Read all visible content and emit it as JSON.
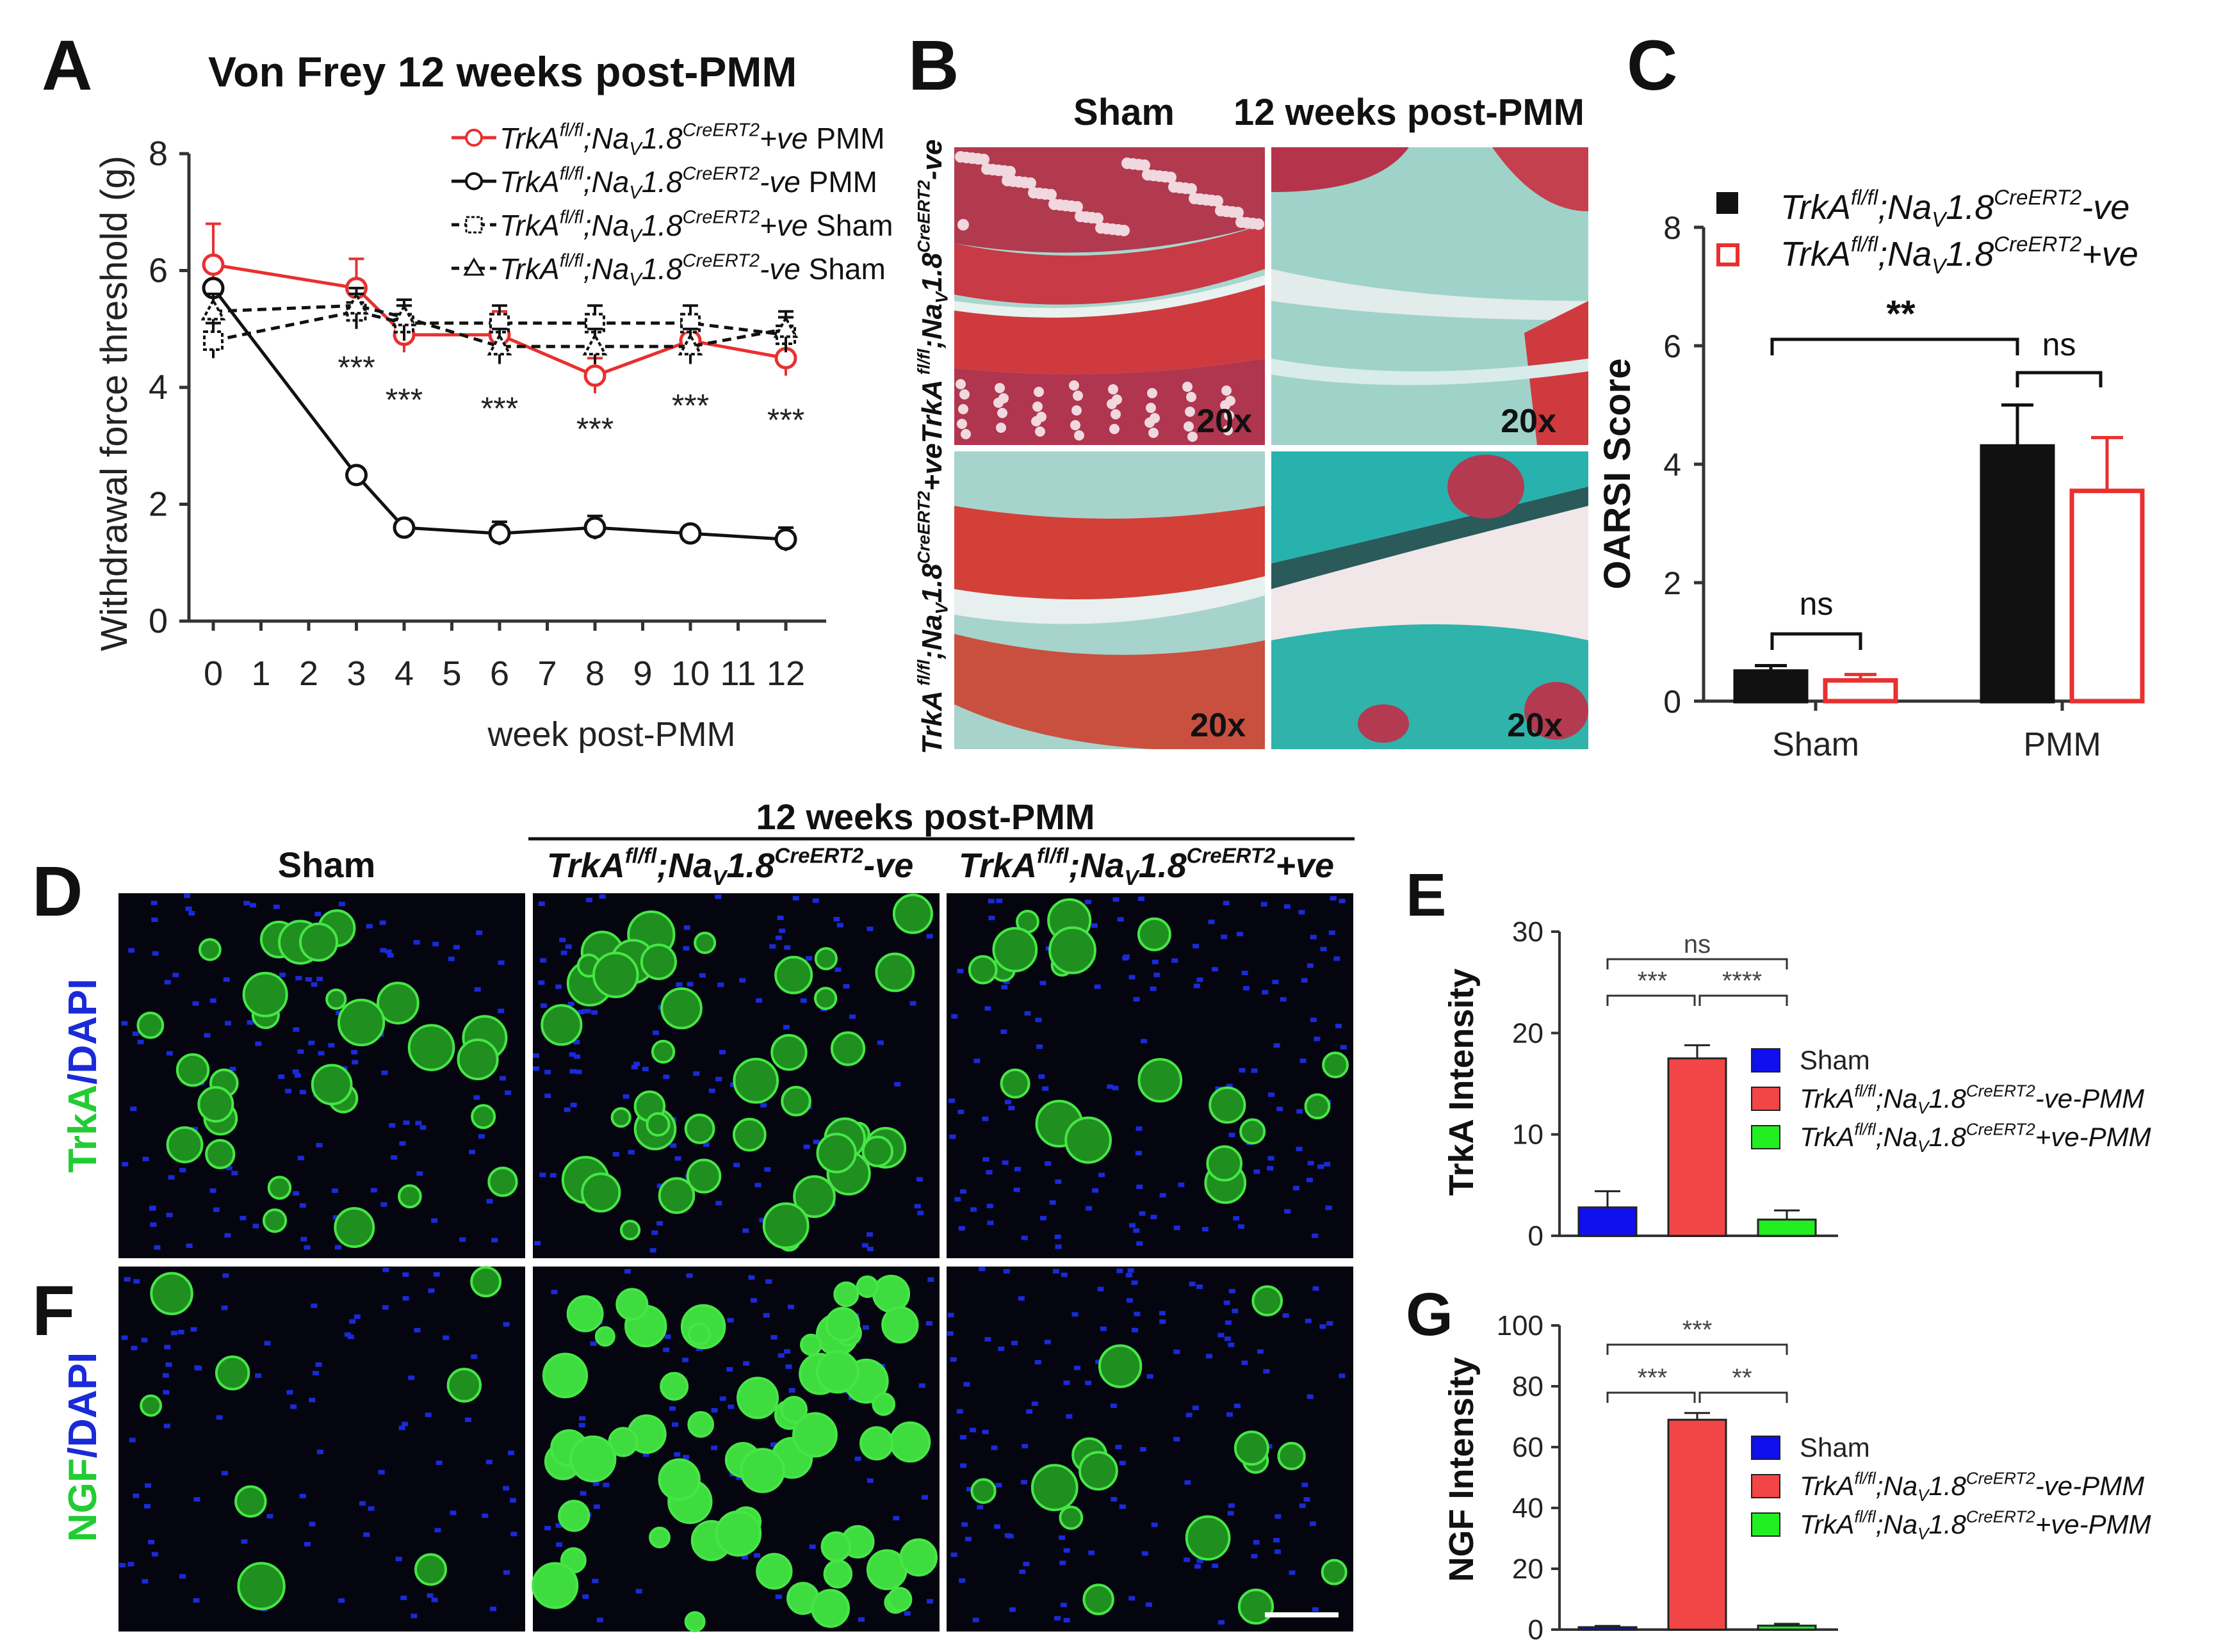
{
  "colors": {
    "red": "#e8302f",
    "black": "#111111",
    "blue": "#1010ee",
    "bar_red": "#f24545",
    "green": "#22ee22",
    "tissue_green": "#22cc33",
    "dapi_blue": "#1a2ad8"
  },
  "panel_letters": [
    "A",
    "B",
    "C",
    "D",
    "E",
    "F",
    "G"
  ],
  "chart_data": [
    {
      "panel": "A",
      "type": "line",
      "title": "Von Frey 12 weeks post-PMM",
      "xlabel": "week post-PMM",
      "ylabel": "Withdrawal force threshold (g)",
      "xlim": [
        0,
        12
      ],
      "ylim": [
        0,
        8
      ],
      "x_ticks": [
        "0",
        "1",
        "2",
        "3",
        "4",
        "5",
        "6",
        "7",
        "8",
        "9",
        "10",
        "11",
        "12"
      ],
      "y_ticks": [
        "0",
        "2",
        "4",
        "6",
        "8"
      ],
      "legend_position": "top-right",
      "series": [
        {
          "name": "TrkAfl/fl;NaV1.8CreERT2+ve PMM",
          "x": [
            0,
            3,
            4,
            6,
            8,
            10,
            12
          ],
          "y": [
            6.1,
            5.7,
            4.9,
            4.9,
            4.2,
            4.8,
            4.5
          ],
          "err": [
            0.7,
            0.5,
            0.3,
            0.4,
            0.3,
            0.3,
            0.3
          ],
          "color": "#e8302f",
          "marker": "circle",
          "dashed": false
        },
        {
          "name": "TrkAfl/fl;NaV1.8CreERT2-ve PMM",
          "x": [
            0,
            3,
            4,
            6,
            8,
            10,
            12
          ],
          "y": [
            5.7,
            2.5,
            1.6,
            1.5,
            1.6,
            1.5,
            1.4
          ],
          "err": [
            0.1,
            0.1,
            0.1,
            0.2,
            0.2,
            0.1,
            0.2
          ],
          "color": "#111111",
          "marker": "circle",
          "dashed": false
        },
        {
          "name": "TrkAfl/fl;NaV1.8CreERT2+ve Sham",
          "x": [
            0,
            3,
            4,
            6,
            8,
            10,
            12
          ],
          "y": [
            4.8,
            5.3,
            5.1,
            5.1,
            5.1,
            5.1,
            4.9
          ],
          "err": [
            0.3,
            0.3,
            0.3,
            0.3,
            0.3,
            0.3,
            0.3
          ],
          "color": "#111111",
          "marker": "square",
          "dashed": true
        },
        {
          "name": "TrkAfl/fl;NaV1.8CreERT2-ve Sham",
          "x": [
            0,
            3,
            4,
            6,
            8,
            10,
            12
          ],
          "y": [
            5.3,
            5.4,
            5.2,
            4.7,
            4.7,
            4.7,
            5.0
          ],
          "err": [
            0.3,
            0.3,
            0.3,
            0.3,
            0.3,
            0.3,
            0.3
          ],
          "color": "#111111",
          "marker": "triangle",
          "dashed": true
        }
      ],
      "legend_entries": [
        {
          "gene": "TrkA",
          "sup1": "fl/fl",
          "mid": ";Na",
          "sub": "V",
          "mid2": "1.8",
          "sup2": "CreERT2",
          "tail": "+ve",
          "group": " PMM"
        },
        {
          "gene": "TrkA",
          "sup1": "fl/fl",
          "mid": ";Na",
          "sub": "V",
          "mid2": "1.8",
          "sup2": "CreERT2",
          "tail": "-ve",
          "group": "  PMM"
        },
        {
          "gene": "TrkA",
          "sup1": "fl/fl",
          "mid": ";Na",
          "sub": "V",
          "mid2": "1.8",
          "sup2": "CreERT2",
          "tail": "+ve",
          "group": " Sham"
        },
        {
          "gene": "TrkA",
          "sup1": "fl/fl",
          "mid": ";Na",
          "sub": "V",
          "mid2": "1.8",
          "sup2": "CreERT2",
          "tail": "-ve",
          "group": "  Sham"
        }
      ],
      "annotations": [
        {
          "x": 3,
          "y": 4.35,
          "text": "***"
        },
        {
          "x": 4,
          "y": 3.8,
          "text": "***"
        },
        {
          "x": 6,
          "y": 3.65,
          "text": "***"
        },
        {
          "x": 8,
          "y": 3.3,
          "text": "***"
        },
        {
          "x": 10,
          "y": 3.7,
          "text": "***"
        },
        {
          "x": 12,
          "y": 3.45,
          "text": "***"
        }
      ]
    },
    {
      "panel": "C",
      "type": "bar",
      "ylabel": "OARSI Score",
      "categories": [
        "Sham",
        "PMM"
      ],
      "ylim": [
        0,
        8
      ],
      "y_ticks": [
        "0",
        "2",
        "4",
        "6",
        "8"
      ],
      "series": [
        {
          "name": "TrkAfl/fl;NaV1.8CreERT2-ve",
          "values": [
            0.5,
            4.3
          ],
          "err": [
            0.1,
            0.7
          ],
          "fill": "#111111",
          "stroke": "#111111"
        },
        {
          "name": "TrkAfl/fl;NaV1.8CreERT2+ve",
          "values": [
            0.35,
            3.55
          ],
          "err": [
            0.1,
            0.9
          ],
          "fill": "#ffffff",
          "stroke": "#e8302f"
        }
      ],
      "legend_entries": [
        {
          "gene": "TrkA",
          "sup1": "fl/fl",
          "mid": ";Na",
          "sub": "V",
          "mid2": "1.8",
          "sup2": "CreERT2",
          "tail": "-ve"
        },
        {
          "gene": "TrkA",
          "sup1": "fl/fl",
          "mid": ";Na",
          "sub": "V",
          "mid2": "1.8",
          "sup2": "CreERT2",
          "tail": "+ve"
        }
      ],
      "significance": [
        {
          "label": "**",
          "between": "Sham vs PMM (-ve)"
        },
        {
          "label": "ns",
          "between": "PMM -ve vs +ve"
        },
        {
          "label": "ns",
          "between": "Sham -ve vs +ve"
        }
      ]
    },
    {
      "panel": "E",
      "type": "bar",
      "ylabel": "TrkA Intensity",
      "ylim": [
        0,
        30
      ],
      "y_ticks": [
        "0",
        "10",
        "20",
        "30"
      ],
      "values": [
        2.8,
        17.5,
        1.6
      ],
      "err": [
        1.6,
        1.3,
        0.9
      ],
      "colors": [
        "#1010ee",
        "#f24545",
        "#22ee22"
      ],
      "legend_entries": [
        {
          "label": "Sham"
        },
        {
          "gene": "TrkA",
          "sup1": "fl/fl",
          "mid": ";Na",
          "sub": "V",
          "mid2": "1.8",
          "sup2": "CreERT2",
          "tail": "-ve-PMM"
        },
        {
          "gene": "TrkA",
          "sup1": "fl/fl",
          "mid": ";Na",
          "sub": "V",
          "mid2": "1.8",
          "sup2": "CreERT2",
          "tail": "+ve-PMM"
        }
      ],
      "significance": [
        "***",
        "****",
        "ns"
      ]
    },
    {
      "panel": "G",
      "type": "bar",
      "ylabel": "NGF Intensity",
      "ylim": [
        0,
        100
      ],
      "y_ticks": [
        "0",
        "20",
        "40",
        "60",
        "80",
        "100"
      ],
      "values": [
        0.8,
        69,
        1.3
      ],
      "err": [
        0.4,
        2.2,
        0.6
      ],
      "colors": [
        "#1010ee",
        "#f24545",
        "#22ee22"
      ],
      "legend_entries": [
        {
          "label": "Sham"
        },
        {
          "gene": "TrkA",
          "sup1": "fl/fl",
          "mid": ";Na",
          "sub": "V",
          "mid2": "1.8",
          "sup2": "CreERT2",
          "tail": "-ve-PMM"
        },
        {
          "gene": "TrkA",
          "sup1": "fl/fl",
          "mid": ";Na",
          "sub": "V",
          "mid2": "1.8",
          "sup2": "CreERT2",
          "tail": "+ve-PMM"
        }
      ],
      "significance": [
        "***",
        "**",
        "***"
      ]
    }
  ],
  "panel_b": {
    "col_sham": "Sham",
    "col_pmm": "12 weeks post-PMM",
    "magnification": "20x",
    "row_labels": [
      {
        "gene": "TrkA",
        "sup1": " fl/fl",
        "mid": ";Na",
        "sub": "V",
        "mid2": "1.8",
        "sup2": "CreERT2",
        "tail": "-ve"
      },
      {
        "gene": "TrkA",
        "sup1": " fl/fl",
        "mid": ";Na",
        "sub": "V",
        "mid2": "1.8",
        "sup2": "CreERT2",
        "tail": "+ve"
      }
    ]
  },
  "panel_df": {
    "group_header": "12 weeks post-PMM",
    "col_sham": "Sham",
    "col_labels": [
      {
        "gene": "TrkA",
        "sup1": "fl/fl",
        "mid": ";Na",
        "sub": "V",
        "mid2": "1.8",
        "sup2": "CreERT2",
        "tail": "-ve"
      },
      {
        "gene": "TrkA",
        "sup1": "fl/fl",
        "mid": ";Na",
        "sub": "V",
        "mid2": "1.8",
        "sup2": "CreERT2",
        "tail": "+ve"
      }
    ],
    "row_d_label": {
      "marker": "TrkA",
      "slash": "/",
      "dapi": "DAPI"
    },
    "row_f_label": {
      "marker": "NGF",
      "slash": "/",
      "dapi": "DAPI"
    }
  }
}
